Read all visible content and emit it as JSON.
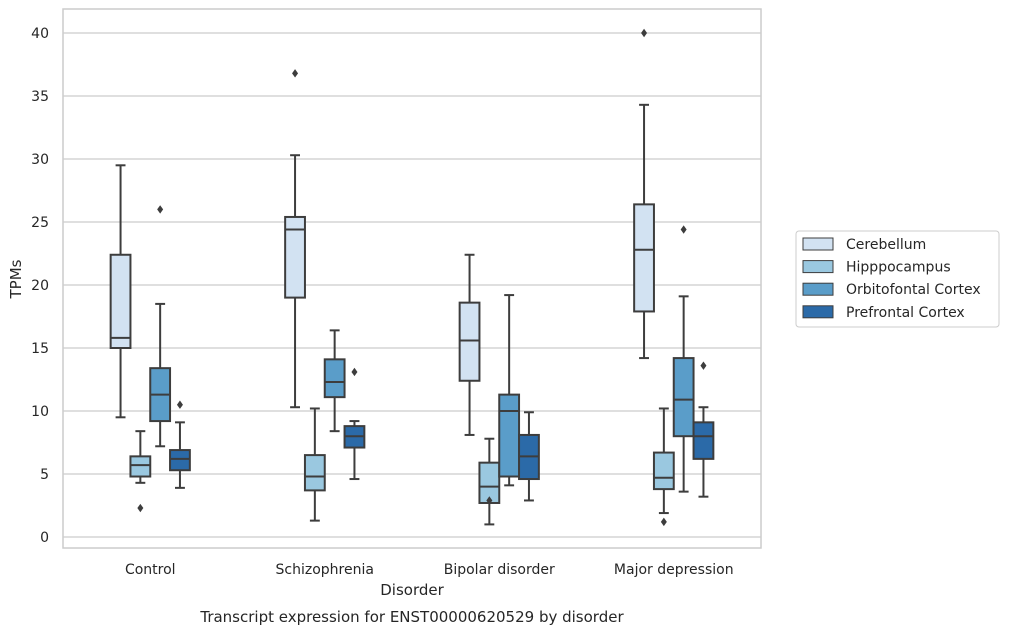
{
  "chart_data": {
    "type": "box",
    "caption": "Transcript expression for ENST00000620529 by disorder",
    "xlabel": "Disorder",
    "ylabel": "TPMs",
    "ylim": [
      -0.8,
      42
    ],
    "yticks": [
      0,
      5,
      10,
      15,
      20,
      25,
      30,
      35,
      40
    ],
    "grid": true,
    "legend_position": "right",
    "categories": [
      "Control",
      "Schizophrenia",
      "Bipolar disorder",
      "Major depression"
    ],
    "series": [
      {
        "name": "Cerebellum",
        "color": "#d2e2f2",
        "boxes": [
          {
            "whisker_low": 9.5,
            "q1": 15.0,
            "median": 15.8,
            "q3": 22.4,
            "whisker_high": 29.5,
            "outliers": []
          },
          {
            "whisker_low": 10.3,
            "q1": 19.0,
            "median": 24.4,
            "q3": 25.4,
            "whisker_high": 30.3,
            "outliers": [
              36.8
            ]
          },
          {
            "whisker_low": 8.1,
            "q1": 12.4,
            "median": 15.6,
            "q3": 18.6,
            "whisker_high": 22.4,
            "outliers": []
          },
          {
            "whisker_low": 14.2,
            "q1": 17.9,
            "median": 22.8,
            "q3": 26.4,
            "whisker_high": 34.3,
            "outliers": [
              40.0
            ]
          }
        ]
      },
      {
        "name": "Hipppocampus",
        "color": "#9ac8e0",
        "boxes": [
          {
            "whisker_low": 4.3,
            "q1": 4.8,
            "median": 5.7,
            "q3": 6.4,
            "whisker_high": 8.4,
            "outliers": [
              2.3
            ]
          },
          {
            "whisker_low": 1.3,
            "q1": 3.7,
            "median": 4.8,
            "q3": 6.5,
            "whisker_high": 10.2,
            "outliers": []
          },
          {
            "whisker_low": 1.0,
            "q1": 2.7,
            "median": 4.0,
            "q3": 5.9,
            "whisker_high": 7.8,
            "outliers": [
              2.9
            ]
          },
          {
            "whisker_low": 1.9,
            "q1": 3.8,
            "median": 4.7,
            "q3": 6.7,
            "whisker_high": 10.2,
            "outliers": [
              1.2
            ]
          }
        ]
      },
      {
        "name": "Orbitofontal Cortex",
        "color": "#5a9dc9",
        "boxes": [
          {
            "whisker_low": 7.2,
            "q1": 9.2,
            "median": 11.3,
            "q3": 13.4,
            "whisker_high": 18.5,
            "outliers": [
              26.0
            ]
          },
          {
            "whisker_low": 8.4,
            "q1": 11.1,
            "median": 12.3,
            "q3": 14.1,
            "whisker_high": 16.4,
            "outliers": []
          },
          {
            "whisker_low": 4.1,
            "q1": 4.8,
            "median": 10.0,
            "q3": 11.3,
            "whisker_high": 19.2,
            "outliers": []
          },
          {
            "whisker_low": 3.6,
            "q1": 8.0,
            "median": 10.9,
            "q3": 14.2,
            "whisker_high": 19.1,
            "outliers": [
              24.4
            ]
          }
        ]
      },
      {
        "name": "Prefrontal Cortex",
        "color": "#2b6aa8",
        "boxes": [
          {
            "whisker_low": 3.9,
            "q1": 5.3,
            "median": 6.2,
            "q3": 6.9,
            "whisker_high": 9.1,
            "outliers": [
              10.5
            ]
          },
          {
            "whisker_low": 4.6,
            "q1": 7.1,
            "median": 8.0,
            "q3": 8.8,
            "whisker_high": 9.2,
            "outliers": [
              13.1
            ]
          },
          {
            "whisker_low": 2.9,
            "q1": 4.6,
            "median": 6.4,
            "q3": 8.1,
            "whisker_high": 9.9,
            "outliers": []
          },
          {
            "whisker_low": 3.2,
            "q1": 6.2,
            "median": 8.0,
            "q3": 9.1,
            "whisker_high": 10.3,
            "outliers": [
              13.6
            ]
          }
        ]
      }
    ]
  }
}
